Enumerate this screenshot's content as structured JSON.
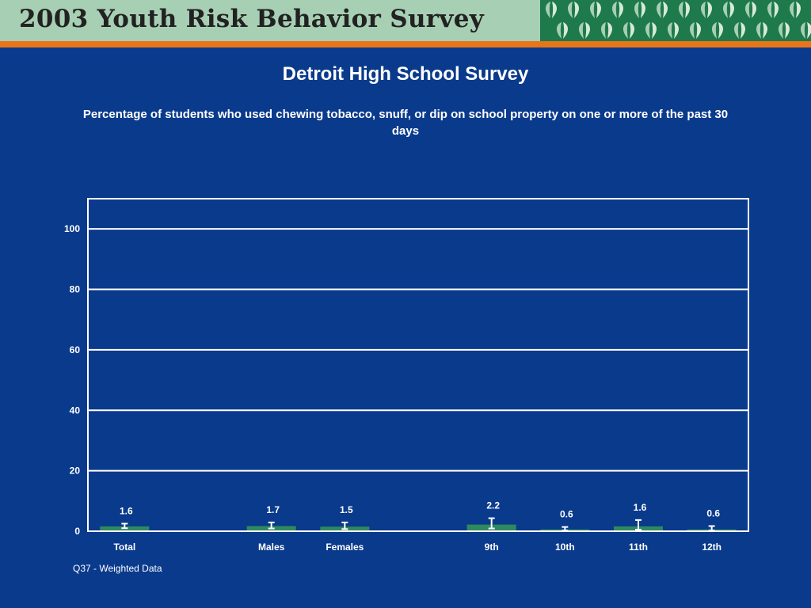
{
  "banner": {
    "title": "2003 Youth Risk Behavior Survey",
    "background_color": "#a7cfb4",
    "accent_color": "#e8751a",
    "pattern_icon": "leaf-pattern-icon"
  },
  "page": {
    "title": "Detroit High School Survey",
    "subtitle": "Percentage of students who used chewing tobacco, snuff, or dip on school property on one or more of the past 30 days",
    "footnote": "Q37 - Weighted Data",
    "background_color": "#0a3a8c"
  },
  "chart_data": {
    "type": "bar",
    "categories": [
      "Total",
      "Males",
      "Females",
      "9th",
      "10th",
      "11th",
      "12th"
    ],
    "values": [
      1.6,
      1.7,
      1.5,
      2.2,
      0.6,
      1.6,
      0.6
    ],
    "value_labels": [
      "1.6",
      "1.7",
      "1.5",
      "2.2",
      "0.6",
      "1.6",
      "0.6"
    ],
    "error_bars": [
      {
        "low": 1.0,
        "high": 2.5
      },
      {
        "low": 0.9,
        "high": 2.9
      },
      {
        "low": 0.7,
        "high": 2.9
      },
      {
        "low": 0.9,
        "high": 4.3
      },
      {
        "low": 0.2,
        "high": 1.4
      },
      {
        "low": 0.5,
        "high": 3.7
      },
      {
        "low": 0.2,
        "high": 1.7
      }
    ],
    "yticks": [
      0,
      20,
      40,
      60,
      80,
      100
    ],
    "ylim": [
      0,
      110
    ],
    "grid": true,
    "bar_color": "#2e8a5e",
    "grid_color": "#ffffff"
  }
}
